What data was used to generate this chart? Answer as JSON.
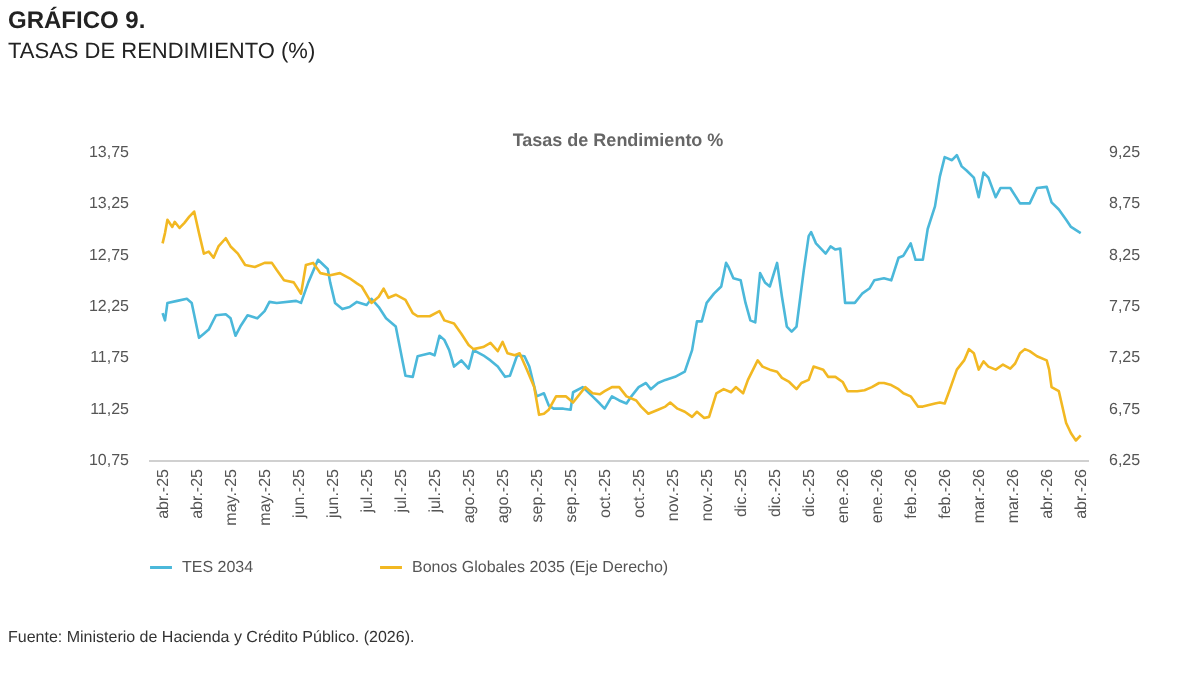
{
  "chart_data": {
    "type": "line",
    "title": "GRÁFICO 9.",
    "subtitle": "TASAS DE RENDIMIENTO (%)",
    "annotations": [
      "Tasas de Rendimiento %",
      "Fuente: Ministerio de Hacienda y Crédito Público. (2026)."
    ],
    "xlim": [
      "2025-04-02",
      "2026-04-24"
    ],
    "xticks": [
      {
        "value": "2025-04-08",
        "label": "abr.-25"
      },
      {
        "value": "2025-04-22",
        "label": "abr.-25"
      },
      {
        "value": "2025-05-06",
        "label": "may.-25"
      },
      {
        "value": "2025-05-20",
        "label": "may.-25"
      },
      {
        "value": "2025-06-03",
        "label": "jun.-25"
      },
      {
        "value": "2025-06-17",
        "label": "jun.-25"
      },
      {
        "value": "2025-07-01",
        "label": "jul.-25"
      },
      {
        "value": "2025-07-15",
        "label": "jul.-25"
      },
      {
        "value": "2025-07-29",
        "label": "jul.-25"
      },
      {
        "value": "2025-08-12",
        "label": "ago.-25"
      },
      {
        "value": "2025-08-26",
        "label": "ago.-25"
      },
      {
        "value": "2025-09-09",
        "label": "sep.-25"
      },
      {
        "value": "2025-09-23",
        "label": "sep.-25"
      },
      {
        "value": "2025-10-07",
        "label": "oct.-25"
      },
      {
        "value": "2025-10-21",
        "label": "oct.-25"
      },
      {
        "value": "2025-11-04",
        "label": "nov.-25"
      },
      {
        "value": "2025-11-18",
        "label": "nov.-25"
      },
      {
        "value": "2025-12-02",
        "label": "dic.-25"
      },
      {
        "value": "2025-12-16",
        "label": "dic.-25"
      },
      {
        "value": "2025-12-30",
        "label": "dic.-25"
      },
      {
        "value": "2026-01-13",
        "label": "ene.-26"
      },
      {
        "value": "2026-01-27",
        "label": "ene.-26"
      },
      {
        "value": "2026-02-10",
        "label": "feb.-26"
      },
      {
        "value": "2026-02-24",
        "label": "feb.-26"
      },
      {
        "value": "2026-03-10",
        "label": "mar.-26"
      },
      {
        "value": "2026-03-24",
        "label": "mar.-26"
      },
      {
        "value": "2026-04-07",
        "label": "abr.-26"
      },
      {
        "value": "2026-04-21",
        "label": "abr.-26"
      }
    ],
    "ylim": [
      10.75,
      13.75
    ],
    "yticks": [
      {
        "value": 10.75,
        "label": "10,75"
      },
      {
        "value": 11.25,
        "label": "11,25"
      },
      {
        "value": 11.75,
        "label": "11,75"
      },
      {
        "value": 12.25,
        "label": "12,25"
      },
      {
        "value": 12.75,
        "label": "12,75"
      },
      {
        "value": 13.25,
        "label": "13,25"
      },
      {
        "value": 13.75,
        "label": "13,75"
      }
    ],
    "y2lim": [
      6.25,
      9.25
    ],
    "y2ticks": [
      {
        "value": 6.25,
        "label": "6,25"
      },
      {
        "value": 6.75,
        "label": "6,75"
      },
      {
        "value": 7.25,
        "label": "7,25"
      },
      {
        "value": 7.75,
        "label": "7,75"
      },
      {
        "value": 8.25,
        "label": "8,25"
      },
      {
        "value": 8.75,
        "label": "8,75"
      },
      {
        "value": 9.25,
        "label": "9,25"
      }
    ],
    "legend": "bottom",
    "line_style": "solid",
    "series": [
      {
        "name": "TES 2034",
        "color": "#4bb8da",
        "axis": "y",
        "x": [
          "2025-04-08",
          "2025-04-09",
          "2025-04-10",
          "2025-04-14",
          "2025-04-18",
          "2025-04-20",
          "2025-04-23",
          "2025-04-25",
          "2025-04-27",
          "2025-04-30",
          "2025-05-04",
          "2025-05-06",
          "2025-05-08",
          "2025-05-10",
          "2025-05-13",
          "2025-05-17",
          "2025-05-20",
          "2025-05-22",
          "2025-05-25",
          "2025-06-02",
          "2025-06-04",
          "2025-06-07",
          "2025-06-11",
          "2025-06-15",
          "2025-06-16",
          "2025-06-18",
          "2025-06-21",
          "2025-06-24",
          "2025-06-27",
          "2025-07-01",
          "2025-07-03",
          "2025-07-06",
          "2025-07-09",
          "2025-07-13",
          "2025-07-16",
          "2025-07-17",
          "2025-07-20",
          "2025-07-22",
          "2025-07-27",
          "2025-07-29",
          "2025-07-31",
          "2025-08-02",
          "2025-08-04",
          "2025-08-06",
          "2025-08-09",
          "2025-08-12",
          "2025-08-14",
          "2025-08-18",
          "2025-08-21",
          "2025-08-24",
          "2025-08-27",
          "2025-08-29",
          "2025-09-01",
          "2025-09-04",
          "2025-09-06",
          "2025-09-09",
          "2025-09-12",
          "2025-09-14",
          "2025-09-16",
          "2025-09-20",
          "2025-09-23",
          "2025-09-24",
          "2025-09-28",
          "2025-10-02",
          "2025-10-05",
          "2025-10-07",
          "2025-10-10",
          "2025-10-13",
          "2025-10-16",
          "2025-10-18",
          "2025-10-21",
          "2025-10-24",
          "2025-10-26",
          "2025-10-29",
          "2025-11-01",
          "2025-11-05",
          "2025-11-09",
          "2025-11-12",
          "2025-11-14",
          "2025-11-16",
          "2025-11-18",
          "2025-11-21",
          "2025-11-24",
          "2025-11-26",
          "2025-11-27",
          "2025-11-29",
          "2025-12-02",
          "2025-12-04",
          "2025-12-06",
          "2025-12-08",
          "2025-12-10",
          "2025-12-12",
          "2025-12-14",
          "2025-12-17",
          "2025-12-19",
          "2025-12-21",
          "2025-12-23",
          "2025-12-25",
          "2025-12-28",
          "2025-12-30",
          "2025-12-31",
          "2026-01-02",
          "2026-01-06",
          "2026-01-08",
          "2026-01-10",
          "2026-01-12",
          "2026-01-14",
          "2026-01-18",
          "2026-01-21",
          "2026-01-24",
          "2026-01-26",
          "2026-01-30",
          "2026-02-02",
          "2026-02-05",
          "2026-02-07",
          "2026-02-10",
          "2026-02-12",
          "2026-02-15",
          "2026-02-17",
          "2026-02-20",
          "2026-02-22",
          "2026-02-24",
          "2026-02-27",
          "2026-03-01",
          "2026-03-03",
          "2026-03-05",
          "2026-03-08",
          "2026-03-10",
          "2026-03-12",
          "2026-03-14",
          "2026-03-17",
          "2026-03-19",
          "2026-03-23",
          "2026-03-27",
          "2026-03-31",
          "2026-04-03",
          "2026-04-07",
          "2026-04-09",
          "2026-04-12",
          "2026-04-15",
          "2026-04-17",
          "2026-04-21"
        ],
        "values": [
          12.18,
          12.11,
          12.28,
          12.3,
          12.32,
          12.28,
          11.94,
          11.98,
          12.02,
          12.16,
          12.17,
          12.13,
          11.96,
          12.05,
          12.16,
          12.13,
          12.2,
          12.29,
          12.28,
          12.3,
          12.28,
          12.48,
          12.7,
          12.61,
          12.48,
          12.28,
          12.22,
          12.24,
          12.29,
          12.26,
          12.32,
          12.24,
          12.13,
          12.05,
          11.69,
          11.57,
          11.56,
          11.76,
          11.79,
          11.77,
          11.96,
          11.92,
          11.82,
          11.66,
          11.72,
          11.64,
          11.82,
          11.77,
          11.72,
          11.66,
          11.56,
          11.57,
          11.77,
          11.76,
          11.66,
          11.37,
          11.4,
          11.28,
          11.25,
          11.25,
          11.24,
          11.41,
          11.46,
          11.37,
          11.3,
          11.25,
          11.37,
          11.33,
          11.3,
          11.37,
          11.46,
          11.5,
          11.44,
          11.5,
          11.53,
          11.56,
          11.61,
          11.82,
          12.1,
          12.1,
          12.28,
          12.37,
          12.44,
          12.67,
          12.63,
          12.52,
          12.5,
          12.28,
          12.11,
          12.09,
          12.57,
          12.48,
          12.44,
          12.67,
          12.34,
          12.05,
          12.0,
          12.05,
          12.6,
          12.93,
          12.97,
          12.86,
          12.76,
          12.83,
          12.8,
          12.81,
          12.28,
          12.28,
          12.37,
          12.42,
          12.5,
          12.52,
          12.5,
          12.72,
          12.74,
          12.86,
          12.7,
          12.7,
          13.0,
          13.22,
          13.51,
          13.7,
          13.67,
          13.72,
          13.61,
          13.57,
          13.5,
          13.31,
          13.55,
          13.5,
          13.31,
          13.4,
          13.4,
          13.25,
          13.25,
          13.4,
          13.41,
          13.26,
          13.19,
          13.09,
          13.02,
          12.96
        ]
      },
      {
        "name": "Bonos Globales 2035 (Eje Derecho)",
        "color": "#f2b822",
        "axis": "y2",
        "x": [
          "2025-04-08",
          "2025-04-09",
          "2025-04-10",
          "2025-04-12",
          "2025-04-13",
          "2025-04-15",
          "2025-04-17",
          "2025-04-19",
          "2025-04-21",
          "2025-04-23",
          "2025-04-25",
          "2025-04-27",
          "2025-04-29",
          "2025-05-01",
          "2025-05-04",
          "2025-05-06",
          "2025-05-09",
          "2025-05-12",
          "2025-05-16",
          "2025-05-20",
          "2025-05-23",
          "2025-05-25",
          "2025-05-28",
          "2025-06-01",
          "2025-06-04",
          "2025-06-06",
          "2025-06-09",
          "2025-06-12",
          "2025-06-16",
          "2025-06-20",
          "2025-06-24",
          "2025-06-27",
          "2025-06-29",
          "2025-07-03",
          "2025-07-06",
          "2025-07-08",
          "2025-07-10",
          "2025-07-13",
          "2025-07-17",
          "2025-07-20",
          "2025-07-22",
          "2025-07-27",
          "2025-07-31",
          "2025-08-02",
          "2025-08-06",
          "2025-08-09",
          "2025-08-12",
          "2025-08-14",
          "2025-08-18",
          "2025-08-21",
          "2025-08-24",
          "2025-08-26",
          "2025-08-28",
          "2025-08-31",
          "2025-09-02",
          "2025-09-05",
          "2025-09-08",
          "2025-09-10",
          "2025-09-12",
          "2025-09-14",
          "2025-09-17",
          "2025-09-21",
          "2025-09-24",
          "2025-09-29",
          "2025-10-02",
          "2025-10-05",
          "2025-10-07",
          "2025-10-10",
          "2025-10-13",
          "2025-10-16",
          "2025-10-20",
          "2025-10-22",
          "2025-10-25",
          "2025-10-29",
          "2025-11-01",
          "2025-11-03",
          "2025-11-06",
          "2025-11-09",
          "2025-11-12",
          "2025-11-14",
          "2025-11-17",
          "2025-11-19",
          "2025-11-22",
          "2025-11-25",
          "2025-11-28",
          "2025-11-30",
          "2025-12-03",
          "2025-12-05",
          "2025-12-09",
          "2025-12-11",
          "2025-12-14",
          "2025-12-17",
          "2025-12-19",
          "2025-12-22",
          "2025-12-25",
          "2025-12-27",
          "2025-12-30",
          "2026-01-01",
          "2026-01-05",
          "2026-01-07",
          "2026-01-10",
          "2026-01-13",
          "2026-01-15",
          "2026-01-19",
          "2026-01-22",
          "2026-01-25",
          "2026-01-28",
          "2026-01-30",
          "2026-02-02",
          "2026-02-05",
          "2026-02-07",
          "2026-02-10",
          "2026-02-13",
          "2026-02-15",
          "2026-02-20",
          "2026-02-22",
          "2026-02-24",
          "2026-02-26",
          "2026-03-01",
          "2026-03-04",
          "2026-03-06",
          "2026-03-08",
          "2026-03-10",
          "2026-03-12",
          "2026-03-14",
          "2026-03-17",
          "2026-03-20",
          "2026-03-23",
          "2026-03-25",
          "2026-03-27",
          "2026-03-29",
          "2026-03-31",
          "2026-04-03",
          "2026-04-07",
          "2026-04-08",
          "2026-04-09",
          "2026-04-12",
          "2026-04-15",
          "2026-04-17",
          "2026-04-19",
          "2026-04-21"
        ],
        "values": [
          8.36,
          8.46,
          8.59,
          8.52,
          8.57,
          8.51,
          8.56,
          8.62,
          8.67,
          8.46,
          8.26,
          8.28,
          8.22,
          8.33,
          8.41,
          8.33,
          8.26,
          8.15,
          8.13,
          8.17,
          8.17,
          8.1,
          8.0,
          7.98,
          7.87,
          8.15,
          8.17,
          8.07,
          8.05,
          8.07,
          8.02,
          7.97,
          7.94,
          7.78,
          7.84,
          7.92,
          7.83,
          7.86,
          7.81,
          7.68,
          7.65,
          7.65,
          7.7,
          7.61,
          7.58,
          7.48,
          7.37,
          7.33,
          7.35,
          7.39,
          7.31,
          7.4,
          7.29,
          7.27,
          7.29,
          7.13,
          6.96,
          6.69,
          6.7,
          6.74,
          6.87,
          6.87,
          6.81,
          6.96,
          6.9,
          6.89,
          6.92,
          6.96,
          6.96,
          6.87,
          6.83,
          6.77,
          6.7,
          6.74,
          6.77,
          6.81,
          6.75,
          6.72,
          6.67,
          6.72,
          6.66,
          6.67,
          6.9,
          6.94,
          6.91,
          6.96,
          6.9,
          7.03,
          7.22,
          7.16,
          7.13,
          7.11,
          7.05,
          7.01,
          6.94,
          7.0,
          7.03,
          7.16,
          7.13,
          7.06,
          7.06,
          7.01,
          6.92,
          6.92,
          6.93,
          6.96,
          7.0,
          7.0,
          6.98,
          6.94,
          6.9,
          6.87,
          6.77,
          6.77,
          6.8,
          6.81,
          6.8,
          6.93,
          7.13,
          7.22,
          7.33,
          7.29,
          7.13,
          7.21,
          7.16,
          7.13,
          7.18,
          7.14,
          7.19,
          7.29,
          7.33,
          7.31,
          7.26,
          7.22,
          7.13,
          6.96,
          6.92,
          6.61,
          6.51,
          6.44,
          6.49
        ]
      }
    ]
  }
}
